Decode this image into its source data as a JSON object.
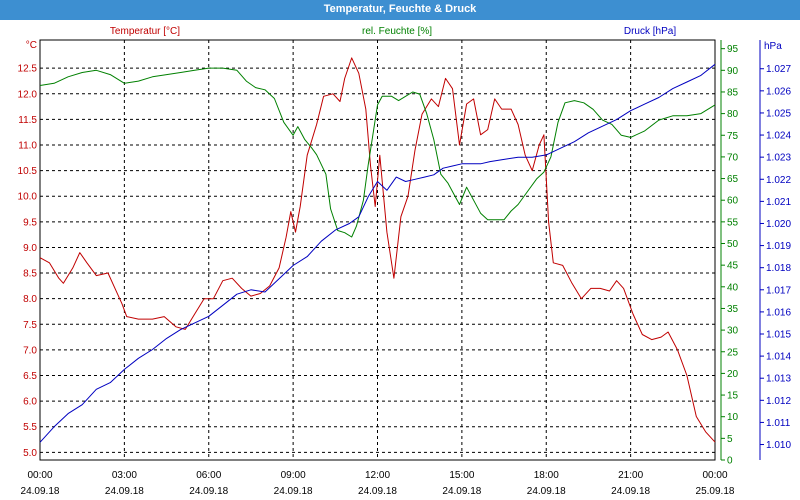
{
  "window": {
    "title": "Temperatur, Feuchte & Druck"
  },
  "colors": {
    "temperature": "#c00000",
    "humidity": "#008000",
    "pressure": "#0000c0",
    "grid": "#000000",
    "titlebar": "#3d8fd1"
  },
  "chart_data": {
    "type": "line",
    "grid": true,
    "x_axis": {
      "range": [
        "24.09.18 00:00",
        "25.09.18 00:00"
      ],
      "ticks": [
        {
          "time": "00:00",
          "date": "24.09.18"
        },
        {
          "time": "03:00",
          "date": "24.09.18"
        },
        {
          "time": "06:00",
          "date": "24.09.18"
        },
        {
          "time": "09:00",
          "date": "24.09.18"
        },
        {
          "time": "12:00",
          "date": "24.09.18"
        },
        {
          "time": "15:00",
          "date": "24.09.18"
        },
        {
          "time": "18:00",
          "date": "24.09.18"
        },
        {
          "time": "21:00",
          "date": "24.09.18"
        },
        {
          "time": "00:00",
          "date": "25.09.18"
        }
      ]
    },
    "axes": {
      "temperature": {
        "label": "Temperatur [°C]",
        "unit": "°C",
        "ylim": [
          4.85,
          13.05
        ],
        "ticks": [
          "5.0",
          "5.5",
          "6.0",
          "6.5",
          "7.0",
          "7.5",
          "8.0",
          "8.5",
          "9.0",
          "9.5",
          "10.0",
          "10.5",
          "11.0",
          "11.5",
          "12.0",
          "12.5"
        ]
      },
      "humidity": {
        "label": "rel. Feuchte [%]",
        "unit": "%",
        "ylim": [
          0,
          97
        ],
        "ticks": [
          "0",
          "5",
          "10",
          "15",
          "20",
          "25",
          "30",
          "35",
          "40",
          "45",
          "50",
          "55",
          "60",
          "65",
          "70",
          "75",
          "80",
          "85",
          "90",
          "95"
        ]
      },
      "pressure": {
        "label": "Druck [hPa]",
        "unit": "hPa",
        "ylim": [
          1.0093,
          1.0283
        ],
        "ticks": [
          "1.010",
          "1.011",
          "1.012",
          "1.013",
          "1.014",
          "1.015",
          "1.016",
          "1.017",
          "1.018",
          "1.019",
          "1.020",
          "1.021",
          "1.022",
          "1.023",
          "1.024",
          "1.025",
          "1.026",
          "1.027"
        ]
      }
    },
    "series": [
      {
        "name": "Temperatur [°C]",
        "axis": "temperature",
        "points": [
          [
            "24.09.18 00:00",
            8.8
          ],
          [
            "24.09.18 00:20",
            8.7
          ],
          [
            "24.09.18 00:40",
            8.4
          ],
          [
            "24.09.18 00:50",
            8.3
          ],
          [
            "24.09.18 01:10",
            8.6
          ],
          [
            "24.09.18 01:25",
            8.9
          ],
          [
            "24.09.18 01:40",
            8.7
          ],
          [
            "24.09.18 02:00",
            8.45
          ],
          [
            "24.09.18 02:25",
            8.5
          ],
          [
            "24.09.18 02:40",
            8.2
          ],
          [
            "24.09.18 02:55",
            7.9
          ],
          [
            "24.09.18 03:05",
            7.65
          ],
          [
            "24.09.18 03:30",
            7.6
          ],
          [
            "24.09.18 04:00",
            7.6
          ],
          [
            "24.09.18 04:25",
            7.65
          ],
          [
            "24.09.18 04:50",
            7.45
          ],
          [
            "24.09.18 05:10",
            7.4
          ],
          [
            "24.09.18 05:30",
            7.7
          ],
          [
            "24.09.18 05:50",
            8.0
          ],
          [
            "24.09.18 06:10",
            8.0
          ],
          [
            "24.09.18 06:30",
            8.35
          ],
          [
            "24.09.18 06:50",
            8.4
          ],
          [
            "24.09.18 07:10",
            8.2
          ],
          [
            "24.09.18 07:30",
            8.05
          ],
          [
            "24.09.18 07:50",
            8.1
          ],
          [
            "24.09.18 08:10",
            8.25
          ],
          [
            "24.09.18 08:30",
            8.6
          ],
          [
            "24.09.18 08:45",
            9.2
          ],
          [
            "24.09.18 08:55",
            9.7
          ],
          [
            "24.09.18 09:05",
            9.3
          ],
          [
            "24.09.18 09:15",
            9.8
          ],
          [
            "24.09.18 09:30",
            10.8
          ],
          [
            "24.09.18 09:50",
            11.4
          ],
          [
            "24.09.18 10:05",
            11.95
          ],
          [
            "24.09.18 10:25",
            12.0
          ],
          [
            "24.09.18 10:40",
            11.85
          ],
          [
            "24.09.18 10:50",
            12.3
          ],
          [
            "24.09.18 11:05",
            12.7
          ],
          [
            "24.09.18 11:20",
            12.4
          ],
          [
            "24.09.18 11:35",
            11.7
          ],
          [
            "24.09.18 11:45",
            10.6
          ],
          [
            "24.09.18 11:55",
            9.8
          ],
          [
            "24.09.18 12:05",
            10.8
          ],
          [
            "24.09.18 12:20",
            9.3
          ],
          [
            "24.09.18 12:35",
            8.4
          ],
          [
            "24.09.18 12:50",
            9.6
          ],
          [
            "24.09.18 13:05",
            10.0
          ],
          [
            "24.09.18 13:20",
            10.9
          ],
          [
            "24.09.18 13:35",
            11.6
          ],
          [
            "24.09.18 13:55",
            11.9
          ],
          [
            "24.09.18 14:10",
            11.75
          ],
          [
            "24.09.18 14:25",
            12.3
          ],
          [
            "24.09.18 14:40",
            12.1
          ],
          [
            "24.09.18 14:55",
            11.0
          ],
          [
            "24.09.18 15:10",
            11.8
          ],
          [
            "24.09.18 15:25",
            11.9
          ],
          [
            "24.09.18 15:40",
            11.2
          ],
          [
            "24.09.18 15:55",
            11.3
          ],
          [
            "24.09.18 16:10",
            11.9
          ],
          [
            "24.09.18 16:25",
            11.7
          ],
          [
            "24.09.18 16:45",
            11.7
          ],
          [
            "24.09.18 17:00",
            11.4
          ],
          [
            "24.09.18 17:15",
            10.8
          ],
          [
            "24.09.18 17:30",
            10.5
          ],
          [
            "24.09.18 17:45",
            11.0
          ],
          [
            "24.09.18 17:55",
            11.2
          ],
          [
            "24.09.18 18:05",
            9.5
          ],
          [
            "24.09.18 18:15",
            8.7
          ],
          [
            "24.09.18 18:35",
            8.65
          ],
          [
            "24.09.18 18:55",
            8.3
          ],
          [
            "24.09.18 19:15",
            8.0
          ],
          [
            "24.09.18 19:35",
            8.2
          ],
          [
            "24.09.18 19:55",
            8.2
          ],
          [
            "24.09.18 20:15",
            8.15
          ],
          [
            "24.09.18 20:30",
            8.35
          ],
          [
            "24.09.18 20:45",
            8.2
          ],
          [
            "24.09.18 21:05",
            7.7
          ],
          [
            "24.09.18 21:25",
            7.3
          ],
          [
            "24.09.18 21:45",
            7.2
          ],
          [
            "24.09.18 22:05",
            7.25
          ],
          [
            "24.09.18 22:20",
            7.35
          ],
          [
            "24.09.18 22:40",
            7.0
          ],
          [
            "24.09.18 23:00",
            6.5
          ],
          [
            "24.09.18 23:20",
            5.7
          ],
          [
            "24.09.18 23:40",
            5.4
          ],
          [
            "25.09.18 00:00",
            5.2
          ]
        ]
      },
      {
        "name": "rel. Feuchte [%]",
        "axis": "humidity",
        "points": [
          [
            "24.09.18 00:00",
            86.5
          ],
          [
            "24.09.18 00:30",
            87.0
          ],
          [
            "24.09.18 01:00",
            88.5
          ],
          [
            "24.09.18 01:30",
            89.5
          ],
          [
            "24.09.18 02:00",
            90.0
          ],
          [
            "24.09.18 02:30",
            89.0
          ],
          [
            "24.09.18 03:00",
            87.0
          ],
          [
            "24.09.18 03:30",
            87.5
          ],
          [
            "24.09.18 04:00",
            88.5
          ],
          [
            "24.09.18 04:30",
            89.0
          ],
          [
            "24.09.18 05:00",
            89.5
          ],
          [
            "24.09.18 05:30",
            90.0
          ],
          [
            "24.09.18 06:00",
            90.5
          ],
          [
            "24.09.18 06:30",
            90.5
          ],
          [
            "24.09.18 07:00",
            90.0
          ],
          [
            "24.09.18 07:20",
            87.5
          ],
          [
            "24.09.18 07:40",
            86.0
          ],
          [
            "24.09.18 08:00",
            85.5
          ],
          [
            "24.09.18 08:20",
            83.5
          ],
          [
            "24.09.18 08:40",
            78.0
          ],
          [
            "24.09.18 09:00",
            75.0
          ],
          [
            "24.09.18 09:10",
            77.0
          ],
          [
            "24.09.18 09:25",
            74.0
          ],
          [
            "24.09.18 09:40",
            72.0
          ],
          [
            "24.09.18 09:50",
            70.5
          ],
          [
            "24.09.18 10:10",
            66.0
          ],
          [
            "24.09.18 10:20",
            58.0
          ],
          [
            "24.09.18 10:35",
            53.0
          ],
          [
            "24.09.18 10:50",
            52.5
          ],
          [
            "24.09.18 11:05",
            51.5
          ],
          [
            "24.09.18 11:15",
            54.0
          ],
          [
            "24.09.18 11:30",
            60.0
          ],
          [
            "24.09.18 11:40",
            68.0
          ],
          [
            "24.09.18 11:50",
            75.0
          ],
          [
            "24.09.18 12:00",
            82.0
          ],
          [
            "24.09.18 12:10",
            84.0
          ],
          [
            "24.09.18 12:30",
            84.0
          ],
          [
            "24.09.18 12:45",
            83.0
          ],
          [
            "24.09.18 13:00",
            84.0
          ],
          [
            "24.09.18 13:15",
            85.0
          ],
          [
            "24.09.18 13:30",
            84.5
          ],
          [
            "24.09.18 13:45",
            80.0
          ],
          [
            "24.09.18 14:00",
            74.0
          ],
          [
            "24.09.18 14:15",
            66.0
          ],
          [
            "24.09.18 14:30",
            64.0
          ],
          [
            "24.09.18 14:45",
            61.0
          ],
          [
            "24.09.18 14:55",
            59.0
          ],
          [
            "24.09.18 15:10",
            63.0
          ],
          [
            "24.09.18 15:25",
            60.0
          ],
          [
            "24.09.18 15:40",
            57.0
          ],
          [
            "24.09.18 15:55",
            55.5
          ],
          [
            "24.09.18 16:10",
            55.5
          ],
          [
            "24.09.18 16:30",
            55.5
          ],
          [
            "24.09.18 16:45",
            57.5
          ],
          [
            "24.09.18 17:00",
            59.0
          ],
          [
            "24.09.18 17:20",
            62.0
          ],
          [
            "24.09.18 17:40",
            65.0
          ],
          [
            "24.09.18 17:55",
            66.5
          ],
          [
            "24.09.18 18:10",
            70.0
          ],
          [
            "24.09.18 18:25",
            78.0
          ],
          [
            "24.09.18 18:40",
            82.5
          ],
          [
            "24.09.18 19:00",
            83.0
          ],
          [
            "24.09.18 19:20",
            82.5
          ],
          [
            "24.09.18 19:40",
            81.0
          ],
          [
            "24.09.18 20:00",
            78.5
          ],
          [
            "24.09.18 20:20",
            77.5
          ],
          [
            "24.09.18 20:40",
            75.0
          ],
          [
            "24.09.18 21:00",
            74.5
          ],
          [
            "24.09.18 21:30",
            76.0
          ],
          [
            "24.09.18 22:00",
            78.5
          ],
          [
            "24.09.18 22:30",
            79.5
          ],
          [
            "24.09.18 23:00",
            79.5
          ],
          [
            "24.09.18 23:30",
            80.0
          ],
          [
            "25.09.18 00:00",
            82.0
          ]
        ]
      },
      {
        "name": "Druck [hPa]",
        "axis": "pressure",
        "points": [
          [
            "24.09.18 00:00",
            1.0101
          ],
          [
            "24.09.18 00:30",
            1.0108
          ],
          [
            "24.09.18 01:00",
            1.0114
          ],
          [
            "24.09.18 01:30",
            1.0118
          ],
          [
            "24.09.18 02:00",
            1.0125
          ],
          [
            "24.09.18 02:30",
            1.0128
          ],
          [
            "24.09.18 03:00",
            1.0134
          ],
          [
            "24.09.18 03:30",
            1.0139
          ],
          [
            "24.09.18 04:00",
            1.0143
          ],
          [
            "24.09.18 04:30",
            1.0148
          ],
          [
            "24.09.18 05:00",
            1.0152
          ],
          [
            "24.09.18 05:30",
            1.0155
          ],
          [
            "24.09.18 06:00",
            1.0158
          ],
          [
            "24.09.18 06:30",
            1.0163
          ],
          [
            "24.09.18 07:00",
            1.0168
          ],
          [
            "24.09.18 07:30",
            1.017
          ],
          [
            "24.09.18 08:00",
            1.0169
          ],
          [
            "24.09.18 08:30",
            1.0175
          ],
          [
            "24.09.18 09:00",
            1.0181
          ],
          [
            "24.09.18 09:30",
            1.0185
          ],
          [
            "24.09.18 10:00",
            1.0192
          ],
          [
            "24.09.18 10:30",
            1.0197
          ],
          [
            "24.09.18 11:00",
            1.02
          ],
          [
            "24.09.18 11:20",
            1.0203
          ],
          [
            "24.09.18 11:40",
            1.0212
          ],
          [
            "24.09.18 12:00",
            1.0219
          ],
          [
            "24.09.18 12:20",
            1.0215
          ],
          [
            "24.09.18 12:40",
            1.0221
          ],
          [
            "24.09.18 13:00",
            1.0219
          ],
          [
            "24.09.18 13:20",
            1.022
          ],
          [
            "24.09.18 13:40",
            1.0221
          ],
          [
            "24.09.18 14:00",
            1.0222
          ],
          [
            "24.09.18 14:20",
            1.0225
          ],
          [
            "24.09.18 14:40",
            1.0226
          ],
          [
            "24.09.18 15:00",
            1.0227
          ],
          [
            "24.09.18 15:20",
            1.0227
          ],
          [
            "24.09.18 15:40",
            1.0227
          ],
          [
            "24.09.18 16:00",
            1.0228
          ],
          [
            "24.09.18 16:30",
            1.0229
          ],
          [
            "24.09.18 17:00",
            1.023
          ],
          [
            "24.09.18 17:30",
            1.023
          ],
          [
            "24.09.18 18:00",
            1.0231
          ],
          [
            "24.09.18 18:30",
            1.0234
          ],
          [
            "24.09.18 19:00",
            1.0237
          ],
          [
            "24.09.18 19:30",
            1.0241
          ],
          [
            "24.09.18 20:00",
            1.0244
          ],
          [
            "24.09.18 20:30",
            1.0247
          ],
          [
            "24.09.18 21:00",
            1.0251
          ],
          [
            "24.09.18 21:30",
            1.0254
          ],
          [
            "24.09.18 22:00",
            1.0257
          ],
          [
            "24.09.18 22:30",
            1.0261
          ],
          [
            "24.09.18 23:00",
            1.0264
          ],
          [
            "24.09.18 23:30",
            1.0267
          ],
          [
            "25.09.18 00:00",
            1.0272
          ]
        ]
      }
    ]
  }
}
